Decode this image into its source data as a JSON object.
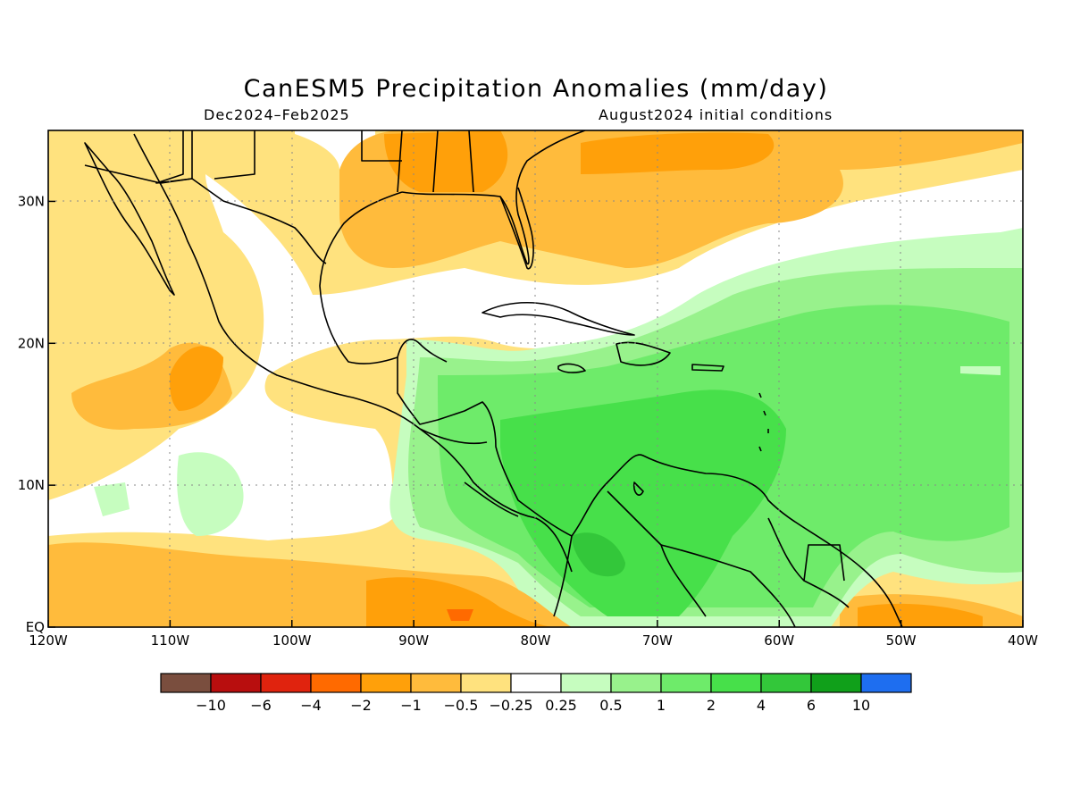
{
  "title": "CanESM5 Precipitation Anomalies (mm/day)",
  "season": "Dec2024–Feb2025",
  "initial_conditions": "August2024 initial conditions",
  "map": {
    "lon_range": [
      -120,
      -40
    ],
    "lat_range": [
      0,
      35
    ],
    "lon_ticks": [
      {
        "value": -120,
        "label": "120W"
      },
      {
        "value": -110,
        "label": "110W"
      },
      {
        "value": -100,
        "label": "100W"
      },
      {
        "value": -90,
        "label": "90W"
      },
      {
        "value": -80,
        "label": "80W"
      },
      {
        "value": -70,
        "label": "70W"
      },
      {
        "value": -60,
        "label": "60W"
      },
      {
        "value": -50,
        "label": "50W"
      },
      {
        "value": -40,
        "label": "40W"
      }
    ],
    "lat_ticks": [
      {
        "value": 0,
        "label": "EQ"
      },
      {
        "value": 10,
        "label": "10N"
      },
      {
        "value": 20,
        "label": "20N"
      },
      {
        "value": 30,
        "label": "30N"
      }
    ],
    "grid": "dotted"
  },
  "colorbar": {
    "colors": [
      "#7a4e3e",
      "#b80e0e",
      "#e0230e",
      "#ff6a00",
      "#ffa00a",
      "#ffbb3c",
      "#ffe27e",
      "#ffffff",
      "#c6fdbf",
      "#98f28c",
      "#6eeb6a",
      "#47e04a",
      "#33c73a",
      "#10a01a",
      "#1e6ef0"
    ],
    "labels": [
      "-10",
      "-6",
      "-4",
      "-2",
      "-1",
      "-0.5",
      "-0.25",
      "0.25",
      "0.5",
      "1",
      "2",
      "4",
      "6",
      "10"
    ]
  }
}
